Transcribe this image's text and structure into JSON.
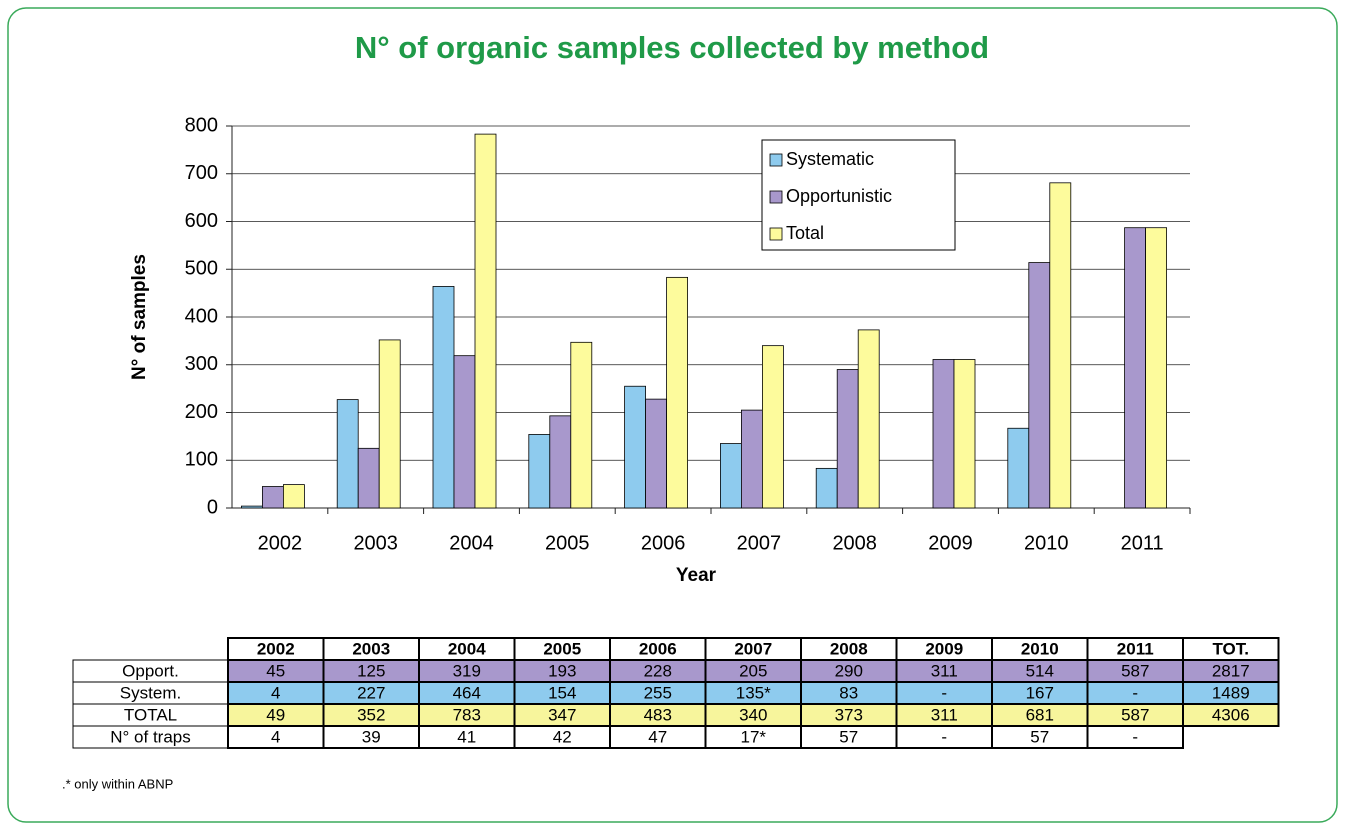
{
  "chart_data": {
    "type": "bar",
    "title": "N° of organic samples collected by method",
    "xlabel": "Year",
    "ylabel": "N° of samples",
    "categories": [
      "2002",
      "2003",
      "2004",
      "2005",
      "2006",
      "2007",
      "2008",
      "2009",
      "2010",
      "2011"
    ],
    "series": [
      {
        "name": "Systematic",
        "color": "#8ecbee",
        "values": [
          4,
          227,
          464,
          154,
          255,
          135,
          83,
          null,
          167,
          null
        ]
      },
      {
        "name": "Opportunistic",
        "color": "#a898cc",
        "values": [
          45,
          125,
          319,
          193,
          228,
          205,
          290,
          311,
          514,
          587
        ]
      },
      {
        "name": "Total",
        "color": "#fdfb9c",
        "values": [
          49,
          352,
          783,
          347,
          483,
          340,
          373,
          311,
          681,
          587
        ]
      }
    ],
    "ylim": [
      0,
      800
    ],
    "yticks": [
      0,
      100,
      200,
      300,
      400,
      500,
      600,
      700,
      800
    ],
    "grid": true,
    "legend": "upper right"
  },
  "table": {
    "columns": [
      "2002",
      "2003",
      "2004",
      "2005",
      "2006",
      "2007",
      "2008",
      "2009",
      "2010",
      "2011",
      "TOT."
    ],
    "rows": [
      {
        "label": "Opport.",
        "color": "#a898cc",
        "cells": [
          "45",
          "125",
          "319",
          "193",
          "228",
          "205",
          "290",
          "311",
          "514",
          "587",
          "2817"
        ]
      },
      {
        "label": "System.",
        "color": "#8ecbee",
        "cells": [
          "4",
          "227",
          "464",
          "154",
          "255",
          "135*",
          "83",
          "-",
          "167",
          "-",
          "1489"
        ]
      },
      {
        "label": "TOTAL",
        "color": "#f7f59c",
        "cells": [
          "49",
          "352",
          "783",
          "347",
          "483",
          "340",
          "373",
          "311",
          "681",
          "587",
          "4306"
        ]
      },
      {
        "label": "N° of traps",
        "color": "#ffffff",
        "cells": [
          "4",
          "39",
          "41",
          "42",
          "47",
          "17*",
          "57",
          "-",
          "57",
          "-"
        ]
      }
    ],
    "footnote": ".* only within ABNP"
  }
}
